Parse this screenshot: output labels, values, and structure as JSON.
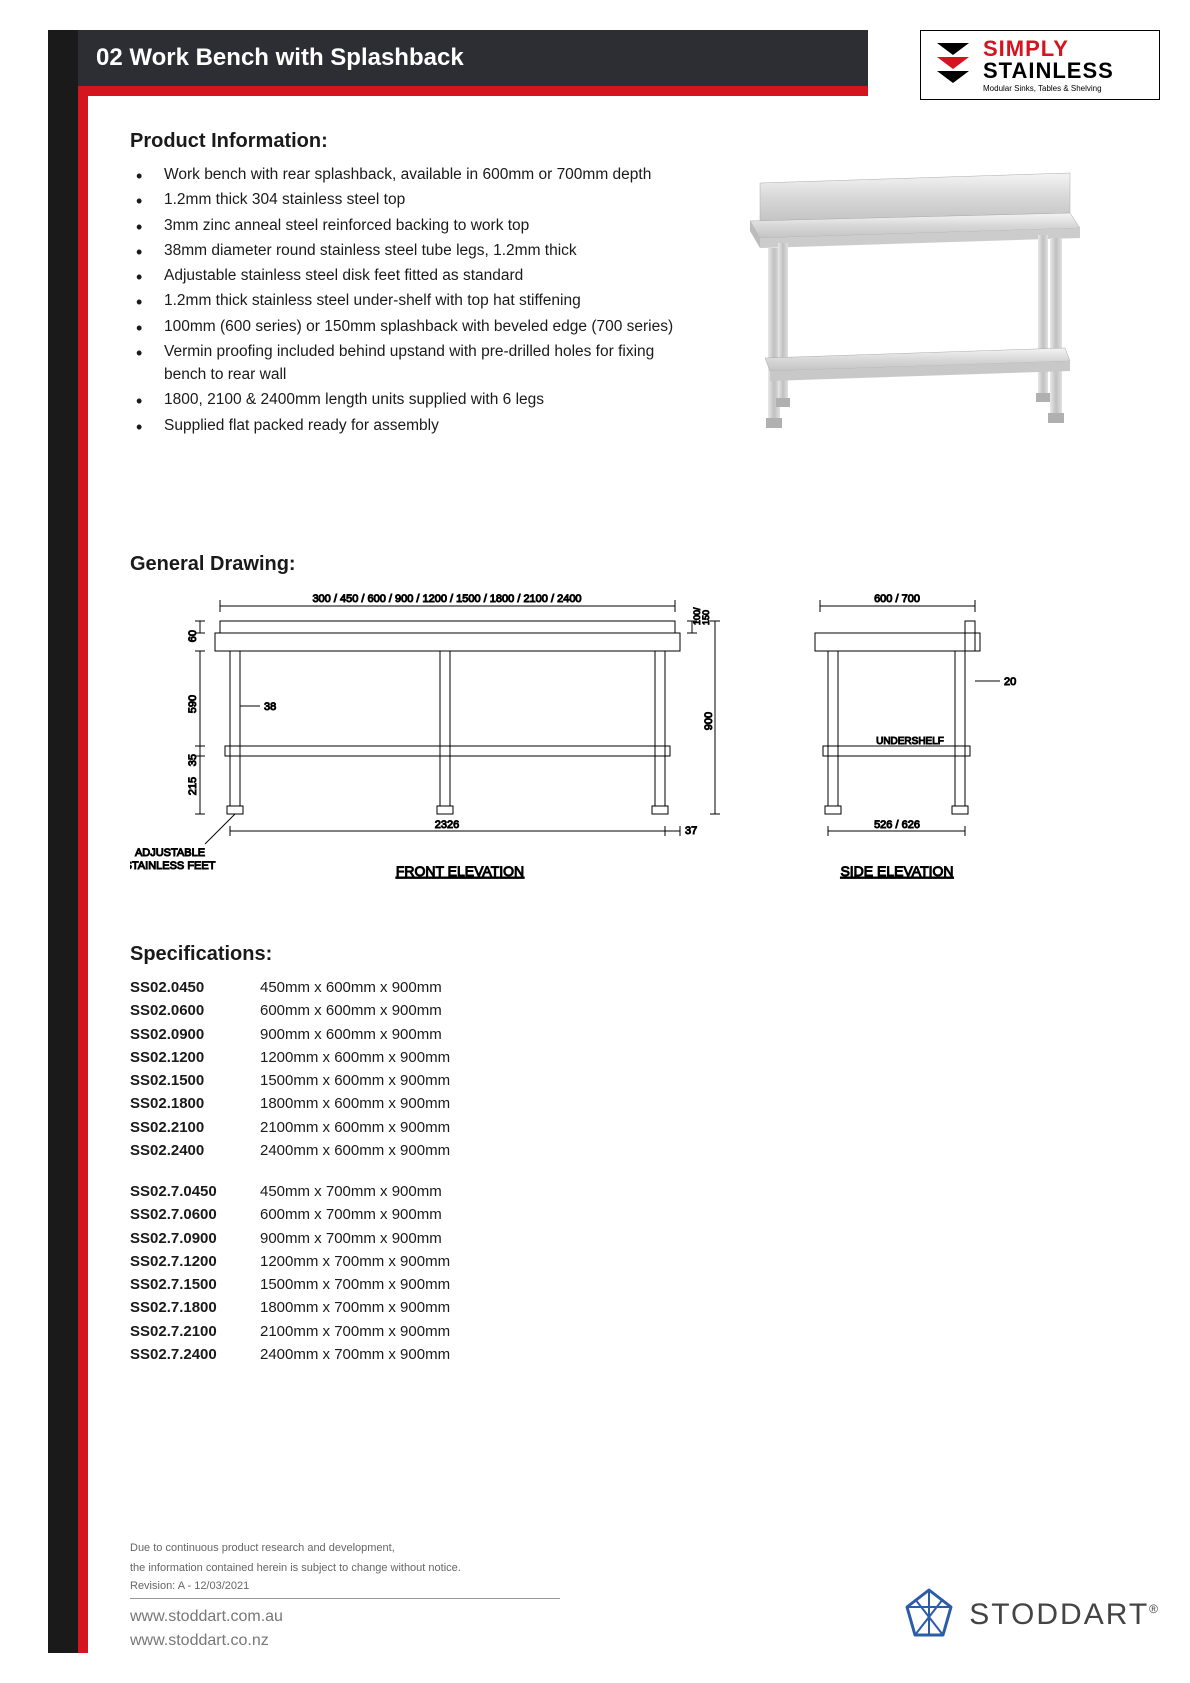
{
  "header": {
    "title": "02 Work Bench with Splashback",
    "bar_bg": "#2d2d34",
    "accent_red": "#d4141e",
    "accent_black": "#1a1a1a"
  },
  "brand": {
    "line1": "SIMPLY",
    "line2": "STAINLESS",
    "tagline": "Modular Sinks, Tables & Shelving",
    "line1_color": "#d4141e",
    "line2_color": "#000000"
  },
  "product_info": {
    "heading": "Product Information:",
    "bullets": [
      "Work bench with rear splashback, available in 600mm or 700mm depth",
      "1.2mm thick 304 stainless steel top",
      "3mm zinc anneal steel reinforced backing to work top",
      "38mm diameter round stainless steel tube legs, 1.2mm thick",
      "Adjustable stainless steel disk feet fitted as standard",
      "1.2mm thick stainless steel under-shelf with top hat stiffening",
      "100mm (600 series) or 150mm splashback with beveled edge (700 series)",
      "Vermin proofing included behind upstand with pre-drilled holes for fixing bench to rear wall",
      "1800, 2100 & 2400mm length units supplied with 6 legs",
      "Supplied flat packed ready for assembly"
    ]
  },
  "drawing": {
    "heading": "General Drawing:",
    "front_label": "FRONT ELEVATION",
    "side_label": "SIDE ELEVATION",
    "widths_label": "300 / 450 / 600 / 900 / 1200 / 1500 / 1800 / 2100 / 2400",
    "depth_label": "600 / 700",
    "dim_60": "60",
    "dim_590": "590",
    "dim_35": "35",
    "dim_215": "215",
    "dim_38": "38",
    "dim_2326": "2326",
    "dim_37": "37",
    "dim_100_150": "100/\n150",
    "dim_900": "900",
    "dim_20": "20",
    "dim_526_626": "526 / 626",
    "undershelf": "UNDERSHELF",
    "feet_label1": "ADJUSTABLE",
    "feet_label2": "STAINLESS FEET",
    "line_color": "#000000",
    "line_width": 1
  },
  "specs": {
    "heading": "Specifications:",
    "group1": [
      {
        "code": "SS02.0450",
        "dims": "450mm x 600mm x 900mm"
      },
      {
        "code": "SS02.0600",
        "dims": "600mm x 600mm x 900mm"
      },
      {
        "code": "SS02.0900",
        "dims": "900mm x 600mm x 900mm"
      },
      {
        "code": "SS02.1200",
        "dims": "1200mm x 600mm x 900mm"
      },
      {
        "code": "SS02.1500",
        "dims": "1500mm x 600mm x 900mm"
      },
      {
        "code": "SS02.1800",
        "dims": "1800mm x 600mm x 900mm"
      },
      {
        "code": "SS02.2100",
        "dims": "2100mm x 600mm x 900mm"
      },
      {
        "code": "SS02.2400",
        "dims": "2400mm x 600mm x 900mm"
      }
    ],
    "group2": [
      {
        "code": "SS02.7.0450",
        "dims": "450mm x 700mm x 900mm"
      },
      {
        "code": "SS02.7.0600",
        "dims": "600mm x 700mm x 900mm"
      },
      {
        "code": "SS02.7.0900",
        "dims": "900mm x 700mm x 900mm"
      },
      {
        "code": "SS02.7.1200",
        "dims": "1200mm x 700mm x 900mm"
      },
      {
        "code": "SS02.7.1500",
        "dims": "1500mm x 700mm x 900mm"
      },
      {
        "code": "SS02.7.1800",
        "dims": "1800mm x 700mm x 900mm"
      },
      {
        "code": "SS02.7.2100",
        "dims": "2100mm x 700mm x 900mm"
      },
      {
        "code": "SS02.7.2400",
        "dims": "2400mm x 700mm x 900mm"
      }
    ]
  },
  "footer": {
    "disclaimer1": "Due to continuous product research and development,",
    "disclaimer2": "the information contained herein is subject to change without notice.",
    "revision": "Revision: A - 12/03/2021",
    "url1": "www.stoddart.com.au",
    "url2": "www.stoddart.co.nz",
    "company": "STODDART",
    "company_color": "#555555",
    "logo_color": "#2a5ca8"
  }
}
